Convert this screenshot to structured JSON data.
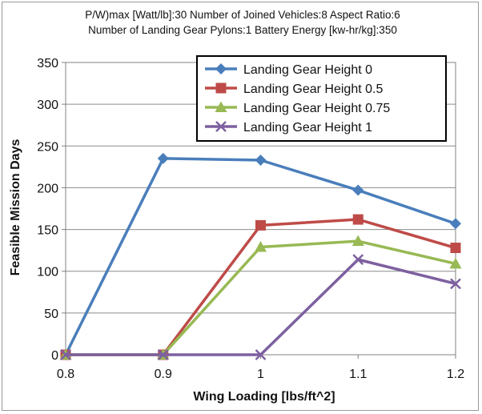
{
  "chart_data": {
    "type": "line",
    "title_lines": [
      "P/W)max [Watt/lb]:30 Number of Joined Vehicles:8 Aspect Ratio:6",
      "Number of Landing Gear Pylons:1 Battery Energy [kw-hr/kg]:350"
    ],
    "xlabel": "Wing Loading  [lbs/ft^2]",
    "ylabel": "Feasible Mission Days",
    "x": [
      0.8,
      0.9,
      1.0,
      1.1,
      1.2
    ],
    "x_tick_labels": [
      "0.8",
      "0.9",
      "1",
      "1.1",
      "1.2"
    ],
    "xlim": [
      0.8,
      1.2
    ],
    "ylim": [
      0,
      350
    ],
    "y_ticks": [
      0,
      50,
      100,
      150,
      200,
      250,
      300,
      350
    ],
    "grid": "horizontal",
    "legend_position": "top-right",
    "series": [
      {
        "name": "Landing Gear Height 0",
        "values": [
          0,
          235,
          233,
          197,
          157
        ],
        "color": "#4a7ebb",
        "marker": "diamond"
      },
      {
        "name": "Landing Gear Height 0.5",
        "values": [
          0,
          0,
          155,
          162,
          128
        ],
        "color": "#be4b48",
        "marker": "square"
      },
      {
        "name": "Landing Gear Height 0.75",
        "values": [
          0,
          0,
          129,
          136,
          109
        ],
        "color": "#98b954",
        "marker": "triangle"
      },
      {
        "name": "Landing Gear Height 1",
        "values": [
          0,
          0,
          0,
          114,
          85
        ],
        "color": "#7d60a0",
        "marker": "x"
      }
    ]
  }
}
